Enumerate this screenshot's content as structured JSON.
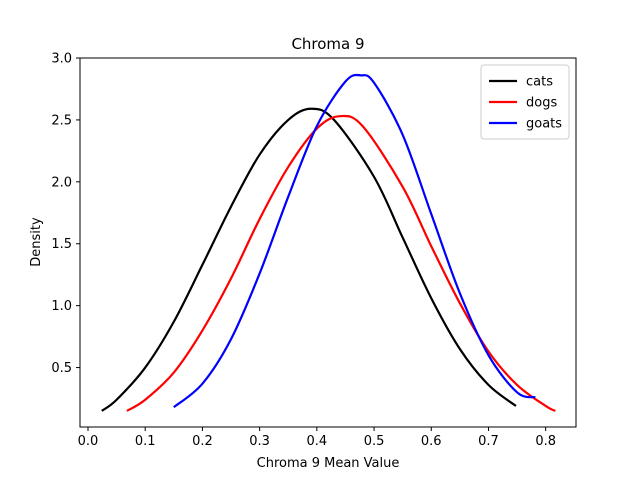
{
  "chart_data": {
    "type": "line",
    "title": "Chroma 9",
    "xlabel": "Chroma 9 Mean Value",
    "ylabel": "Density",
    "xlim": [
      -0.014,
      0.853
    ],
    "ylim": [
      0.02,
      3.0
    ],
    "xticks": [
      0.0,
      0.1,
      0.2,
      0.3,
      0.4,
      0.5,
      0.6,
      0.7,
      0.8
    ],
    "xtick_labels": [
      "0.0",
      "0.1",
      "0.2",
      "0.3",
      "0.4",
      "0.5",
      "0.6",
      "0.7",
      "0.8"
    ],
    "yticks": [
      0.5,
      1.0,
      1.5,
      2.0,
      2.5,
      3.0
    ],
    "ytick_labels": [
      "0.5",
      "1.0",
      "1.5",
      "2.0",
      "2.5",
      "3.0"
    ],
    "grid": false,
    "legend_position": "top-right",
    "series": [
      {
        "name": "cats",
        "color": "#000000",
        "x": [
          0.024,
          0.05,
          0.1,
          0.15,
          0.2,
          0.25,
          0.3,
          0.35,
          0.39,
          0.43,
          0.5,
          0.55,
          0.6,
          0.65,
          0.7,
          0.748
        ],
        "y": [
          0.15,
          0.24,
          0.5,
          0.87,
          1.33,
          1.8,
          2.22,
          2.5,
          2.59,
          2.5,
          2.04,
          1.55,
          1.06,
          0.65,
          0.36,
          0.19
        ]
      },
      {
        "name": "dogs",
        "color": "#ff0000",
        "x": [
          0.068,
          0.1,
          0.15,
          0.2,
          0.25,
          0.3,
          0.35,
          0.4,
          0.44,
          0.48,
          0.55,
          0.6,
          0.65,
          0.7,
          0.75,
          0.8,
          0.817
        ],
        "y": [
          0.15,
          0.24,
          0.46,
          0.8,
          1.22,
          1.7,
          2.12,
          2.43,
          2.53,
          2.45,
          1.96,
          1.48,
          1.02,
          0.63,
          0.36,
          0.19,
          0.15
        ]
      },
      {
        "name": "goats",
        "color": "#0000ff",
        "x": [
          0.15,
          0.2,
          0.25,
          0.3,
          0.35,
          0.4,
          0.45,
          0.477,
          0.5,
          0.55,
          0.6,
          0.65,
          0.7,
          0.75,
          0.782
        ],
        "y": [
          0.18,
          0.37,
          0.73,
          1.26,
          1.88,
          2.45,
          2.81,
          2.86,
          2.8,
          2.38,
          1.74,
          1.1,
          0.6,
          0.3,
          0.26
        ]
      }
    ]
  }
}
